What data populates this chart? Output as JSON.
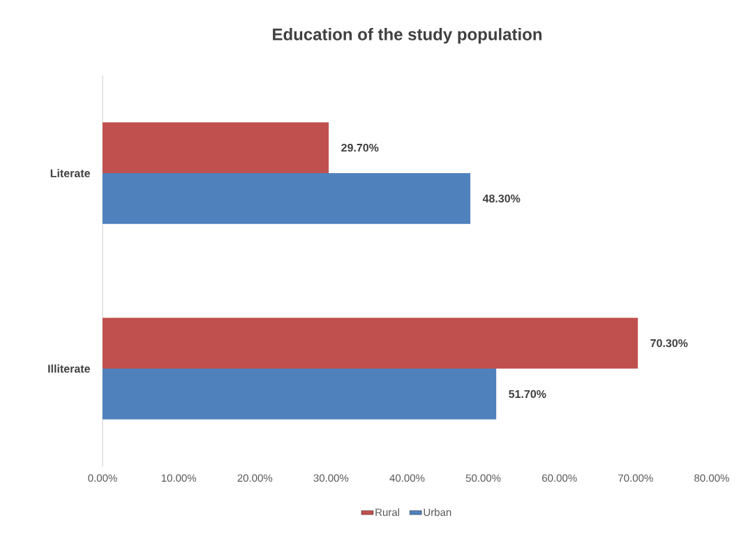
{
  "chart_data": {
    "type": "bar",
    "orientation": "horizontal",
    "title": "Education of the study population",
    "categories": [
      "Literate",
      "Illiterate"
    ],
    "series": [
      {
        "name": "Rural",
        "color": "#c0504d",
        "values": [
          29.7,
          70.3
        ],
        "value_labels": [
          "29.70%",
          "70.30%"
        ]
      },
      {
        "name": "Urban",
        "color": "#4f81bd",
        "values": [
          48.3,
          51.7
        ],
        "value_labels": [
          "48.30%",
          "51.70%"
        ]
      }
    ],
    "xlim": [
      0,
      80
    ],
    "xticks": [
      {
        "value": 0,
        "label": "0.00%"
      },
      {
        "value": 10,
        "label": "10.00%"
      },
      {
        "value": 20,
        "label": "20.00%"
      },
      {
        "value": 30,
        "label": "30.00%"
      },
      {
        "value": 40,
        "label": "40.00%"
      },
      {
        "value": 50,
        "label": "50.00%"
      },
      {
        "value": 60,
        "label": "60.00%"
      },
      {
        "value": 70,
        "label": "70.00%"
      },
      {
        "value": 80,
        "label": "80.00%"
      }
    ],
    "legend": "bottom"
  }
}
